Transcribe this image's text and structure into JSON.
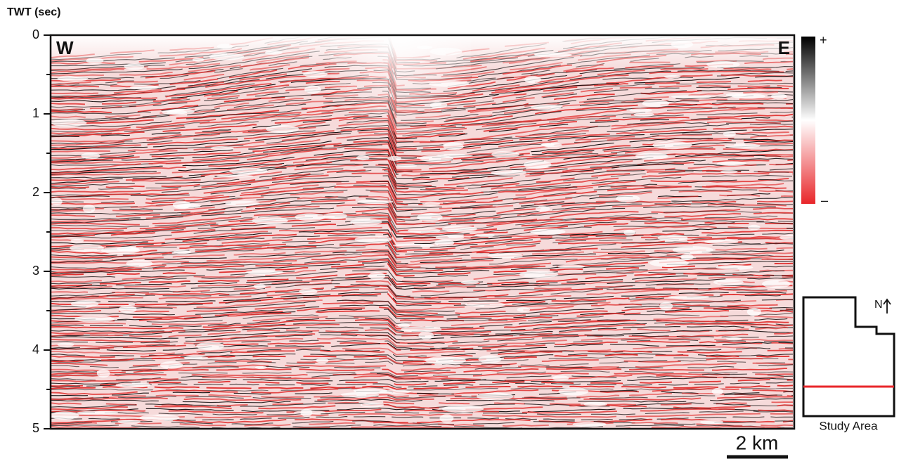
{
  "section": {
    "axis_label": "TWT (sec)",
    "ylim": [
      0,
      5
    ],
    "yticks": [
      0,
      1,
      2,
      3,
      4,
      5
    ],
    "west_label": "W",
    "east_label": "E"
  },
  "colorbar": {
    "top_label": "+",
    "bottom_label": "–"
  },
  "scale_bar": {
    "label": "2 km"
  },
  "inset": {
    "north_label": "N",
    "caption": "Study Area"
  }
}
